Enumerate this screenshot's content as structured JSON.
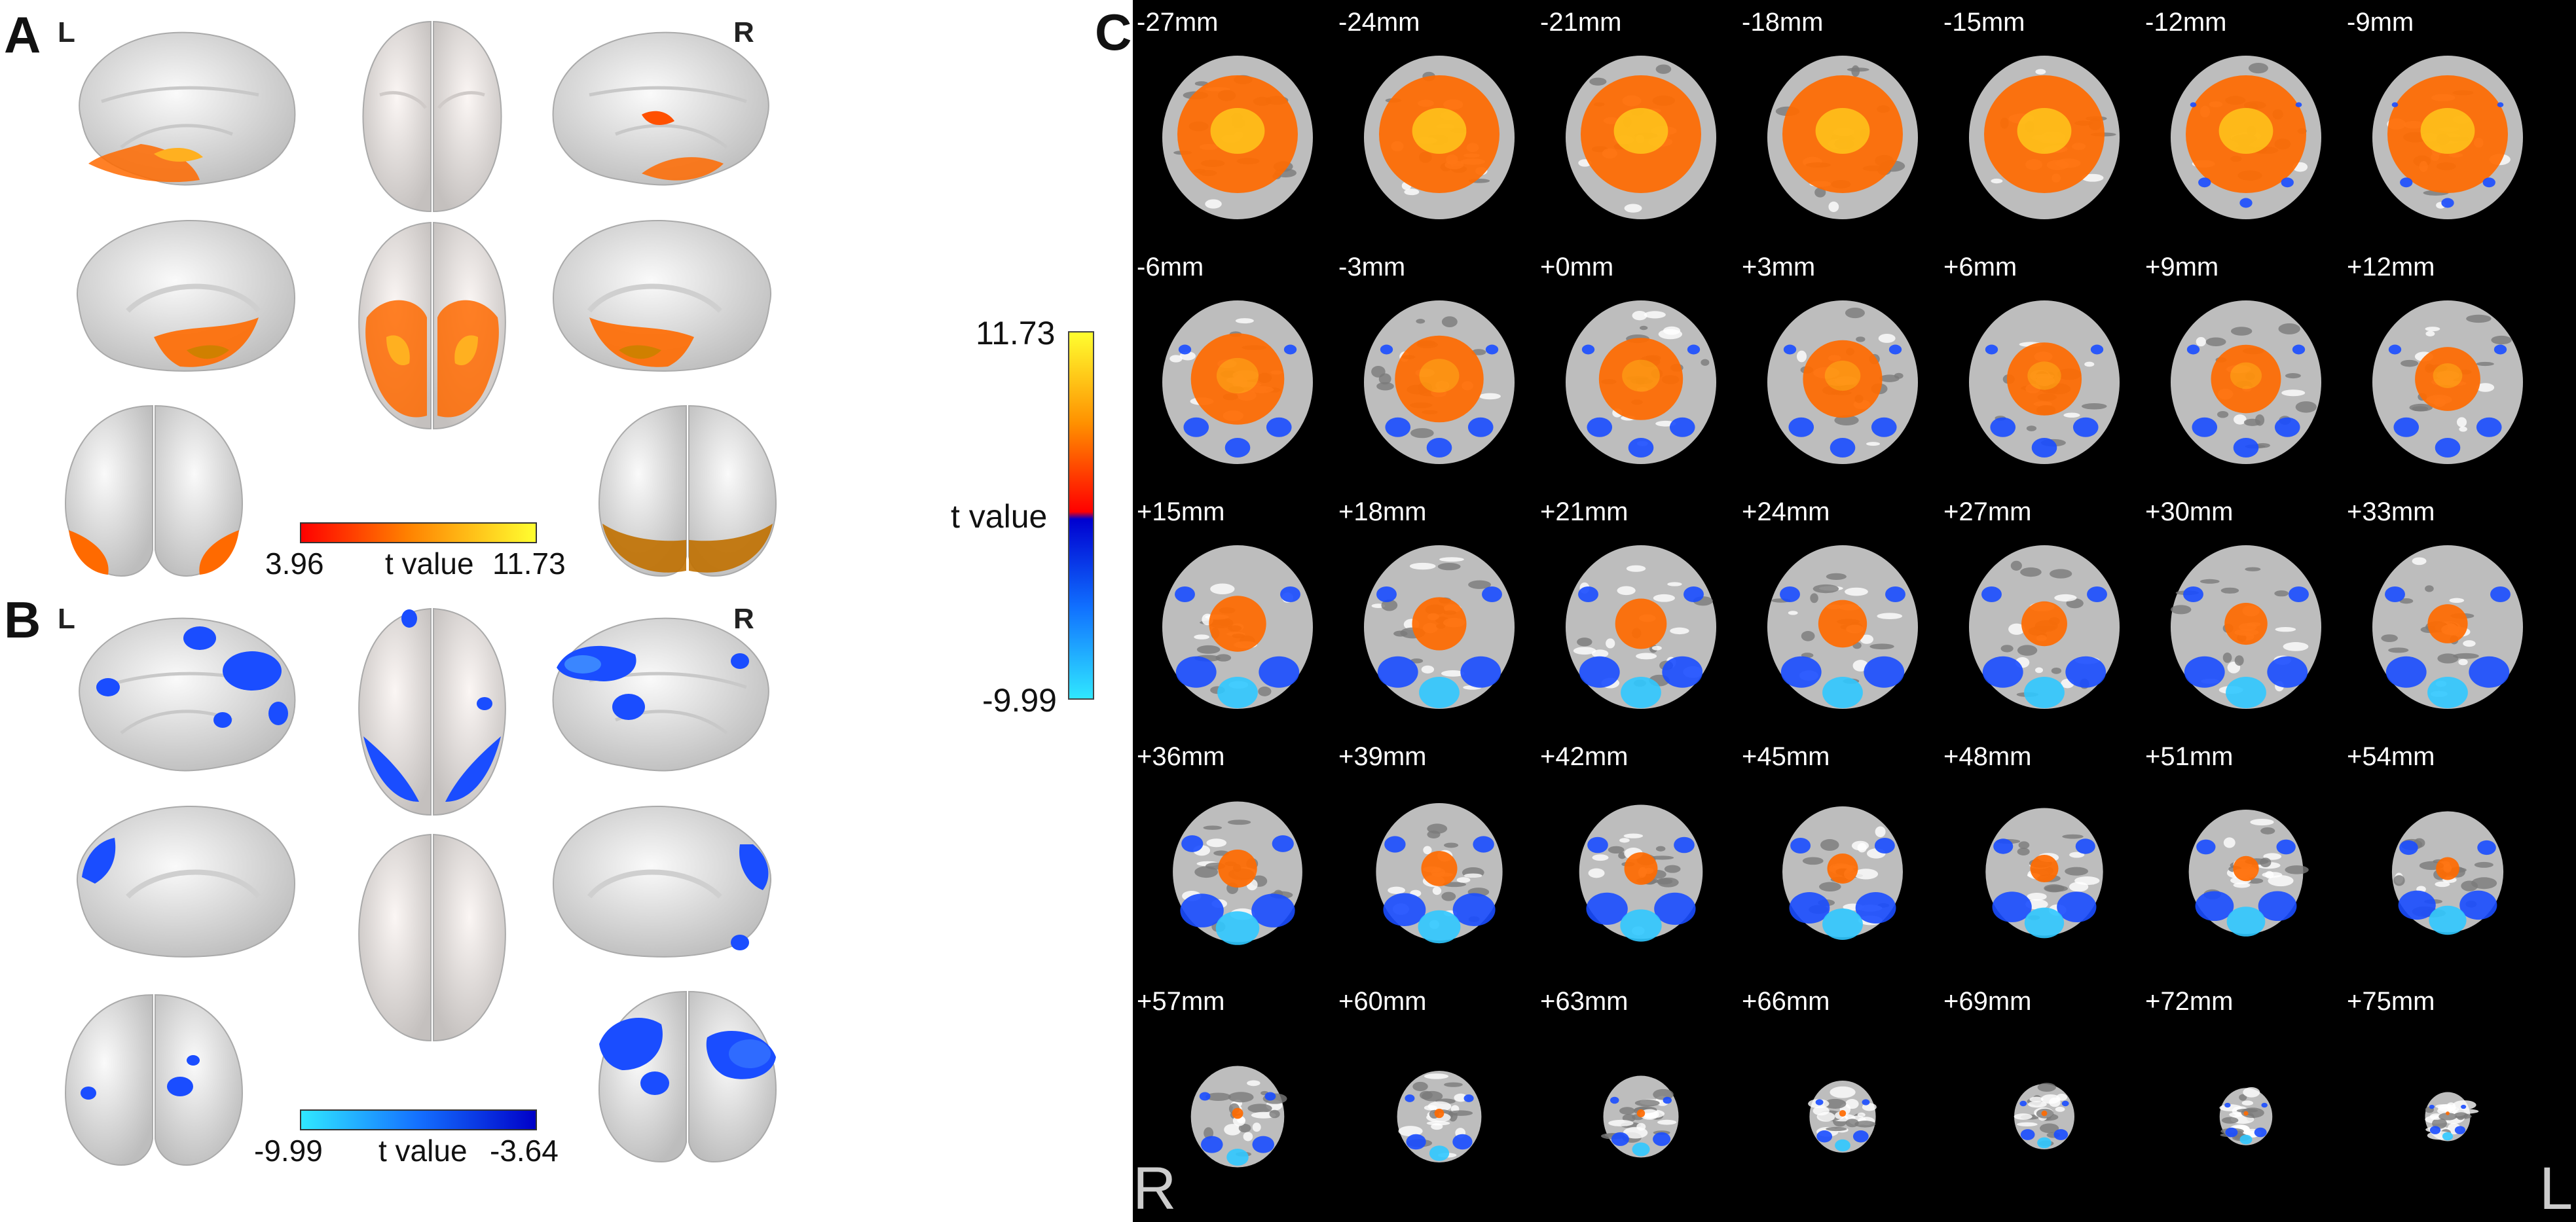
{
  "panel_a": {
    "letter": "A",
    "left_label": "L",
    "right_label": "R",
    "colorbar": {
      "min": "3.96",
      "max": "11.73",
      "label": "t value",
      "colors": [
        "#ff0000",
        "#ff8000",
        "#ffff20"
      ]
    }
  },
  "panel_b": {
    "letter": "B",
    "left_label": "L",
    "right_label": "R",
    "colorbar": {
      "min": "-9.99",
      "max": "-3.64",
      "label": "t value",
      "colors": [
        "#20e0ff",
        "#1060ff",
        "#0000d0"
      ]
    }
  },
  "panel_c": {
    "letter": "C",
    "orientation_left": "R",
    "orientation_right": "L",
    "slices": [
      "-27mm",
      "-24mm",
      "-21mm",
      "-18mm",
      "-15mm",
      "-12mm",
      "-9mm",
      "-6mm",
      "-3mm",
      "+0mm",
      "+3mm",
      "+6mm",
      "+9mm",
      "+12mm",
      "+15mm",
      "+18mm",
      "+21mm",
      "+24mm",
      "+27mm",
      "+30mm",
      "+33mm",
      "+36mm",
      "+39mm",
      "+42mm",
      "+45mm",
      "+48mm",
      "+51mm",
      "+54mm",
      "+57mm",
      "+60mm",
      "+63mm",
      "+66mm",
      "+69mm",
      "+72mm",
      "+75mm"
    ]
  },
  "colorbar_c": {
    "max": "11.73",
    "min": "-9.99",
    "label": "t value"
  },
  "colors": {
    "positive": "#ff6a00",
    "positive_hot": "#ffd21e",
    "negative": "#1a4dff",
    "negative_light": "#30c8ff",
    "brain_surface": "#e6e6e6"
  }
}
